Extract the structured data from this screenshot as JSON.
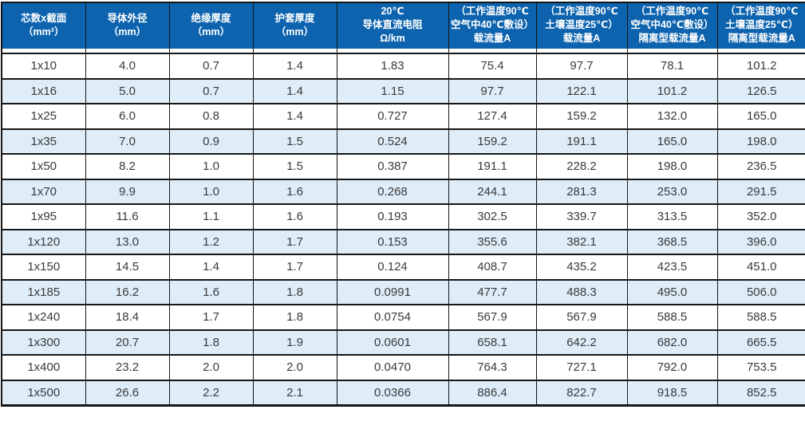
{
  "table": {
    "columns": [
      {
        "id": "core-size",
        "width": 105,
        "header_lines": [
          "芯数x截面",
          "（mm²）"
        ]
      },
      {
        "id": "conductor-od",
        "width": 105,
        "header_lines": [
          "导体外径",
          "（mm）"
        ]
      },
      {
        "id": "insulation-thk",
        "width": 105,
        "header_lines": [
          "绝缘厚度",
          "（mm）"
        ]
      },
      {
        "id": "sheath-thk",
        "width": 105,
        "header_lines": [
          "护套厚度",
          "（mm）"
        ]
      },
      {
        "id": "dc-resistance",
        "width": 140,
        "header_lines": [
          "20℃",
          "导体直流电阻",
          "Ω/km"
        ]
      },
      {
        "id": "ampacity-air",
        "width": 110,
        "header_lines": [
          "（工作温度90℃",
          "空气中40℃敷设）",
          "载流量A"
        ]
      },
      {
        "id": "ampacity-soil",
        "width": 114,
        "header_lines": [
          "（工作温度90℃",
          "土壤温度25℃）",
          "载流量A"
        ]
      },
      {
        "id": "ampacity-air-iso",
        "width": 113,
        "header_lines": [
          "（工作温度90℃",
          "空气中40℃敷设）",
          "隔离型载流量A"
        ]
      },
      {
        "id": "ampacity-soil-iso",
        "width": 112,
        "header_lines": [
          "（工作温度90℃",
          "土壤温度25℃）",
          "隔离型载流量A"
        ]
      }
    ],
    "rows": [
      [
        "1x10",
        "4.0",
        "0.7",
        "1.4",
        "1.83",
        "75.4",
        "97.7",
        "78.1",
        "101.2"
      ],
      [
        "1x16",
        "5.0",
        "0.7",
        "1.4",
        "1.15",
        "97.7",
        "122.1",
        "101.2",
        "126.5"
      ],
      [
        "1x25",
        "6.0",
        "0.8",
        "1.4",
        "0.727",
        "127.4",
        "159.2",
        "132.0",
        "165.0"
      ],
      [
        "1x35",
        "7.0",
        "0.9",
        "1.5",
        "0.524",
        "159.2",
        "191.1",
        "165.0",
        "198.0"
      ],
      [
        "1x50",
        "8.2",
        "1.0",
        "1.5",
        "0.387",
        "191.1",
        "228.2",
        "198.0",
        "236.5"
      ],
      [
        "1x70",
        "9.9",
        "1.0",
        "1.6",
        "0.268",
        "244.1",
        "281.3",
        "253.0",
        "291.5"
      ],
      [
        "1x95",
        "11.6",
        "1.1",
        "1.6",
        "0.193",
        "302.5",
        "339.7",
        "313.5",
        "352.0"
      ],
      [
        "1x120",
        "13.0",
        "1.2",
        "1.7",
        "0.153",
        "355.6",
        "382.1",
        "368.5",
        "396.0"
      ],
      [
        "1x150",
        "14.5",
        "1.4",
        "1.7",
        "0.124",
        "408.7",
        "435.2",
        "423.5",
        "451.0"
      ],
      [
        "1x185",
        "16.2",
        "1.6",
        "1.8",
        "0.0991",
        "477.7",
        "488.3",
        "495.0",
        "506.0"
      ],
      [
        "1x240",
        "18.4",
        "1.7",
        "1.8",
        "0.0754",
        "567.9",
        "567.9",
        "588.5",
        "588.5"
      ],
      [
        "1x300",
        "20.7",
        "1.8",
        "1.9",
        "0.0601",
        "658.1",
        "642.2",
        "682.0",
        "665.5"
      ],
      [
        "1x400",
        "23.2",
        "2.0",
        "2.0",
        "0.0470",
        "764.3",
        "727.1",
        "792.0",
        "753.5"
      ],
      [
        "1x500",
        "26.6",
        "2.2",
        "2.1",
        "0.0366",
        "886.4",
        "822.7",
        "918.5",
        "852.5"
      ]
    ]
  },
  "colors": {
    "header_bg": "#0d63ae",
    "header_text": "#ffffff",
    "row_alt_bg": "#deedf8",
    "row_bg": "#ffffff",
    "border": "#161616",
    "cell_text": "#3a3a3a"
  }
}
